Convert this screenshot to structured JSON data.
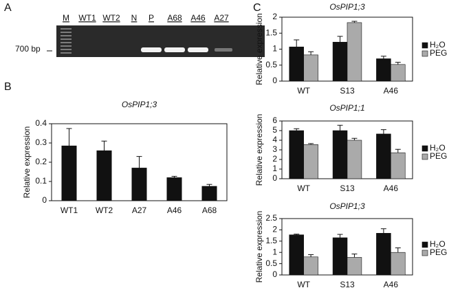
{
  "panels": [
    "A",
    "B",
    "C"
  ],
  "gel": {
    "lanes": [
      "M",
      "WT1",
      "WT2",
      "N",
      "P",
      "A68",
      "A46",
      "A27"
    ],
    "marker": "700 bp"
  },
  "chart_data": [
    {
      "type": "bar",
      "title": "OsPIP1;3",
      "y_label": "Relative expression",
      "categories": [
        "WT1",
        "WT2",
        "A27",
        "A46",
        "A68"
      ],
      "values": [
        0.285,
        0.26,
        0.17,
        0.12,
        0.075
      ],
      "errors": [
        0.09,
        0.05,
        0.06,
        0.007,
        0.01
      ],
      "color": "#111111",
      "ylim": [
        0,
        0.4
      ],
      "yticks": [
        0,
        0.1,
        0.2,
        0.3,
        0.4
      ]
    },
    {
      "type": "bar",
      "title": "OsPIP1;3",
      "y_label": "Relative expression",
      "categories": [
        "WT",
        "S13",
        "A46"
      ],
      "series": [
        {
          "name": "H₂O",
          "color": "#111111",
          "values": [
            1.07,
            1.22,
            0.7
          ],
          "errors": [
            0.22,
            0.18,
            0.08
          ]
        },
        {
          "name": "PEG",
          "color": "#aaaaaa",
          "values": [
            0.82,
            1.83,
            0.52
          ],
          "errors": [
            0.1,
            0.04,
            0.07
          ]
        }
      ],
      "ylim": [
        0,
        2
      ],
      "yticks": [
        0,
        0.5,
        1,
        1.5,
        2
      ]
    },
    {
      "type": "bar",
      "title": "OsPIP1;1",
      "y_label": "Relative expression",
      "categories": [
        "WT",
        "S13",
        "A46"
      ],
      "series": [
        {
          "name": "H₂O",
          "color": "#111111",
          "values": [
            5.0,
            5.0,
            4.65
          ],
          "errors": [
            0.2,
            0.55,
            0.45
          ]
        },
        {
          "name": "PEG",
          "color": "#aaaaaa",
          "values": [
            3.55,
            4.0,
            2.7
          ],
          "errors": [
            0.1,
            0.2,
            0.35
          ]
        }
      ],
      "ylim": [
        0,
        6
      ],
      "yticks": [
        0,
        1,
        2,
        3,
        4,
        5,
        6
      ]
    },
    {
      "type": "bar",
      "title": "OsPIP1;3",
      "y_label": "Relative expression",
      "categories": [
        "WT",
        "S13",
        "A46"
      ],
      "series": [
        {
          "name": "H₂O",
          "color": "#111111",
          "values": [
            1.78,
            1.65,
            1.85
          ],
          "errors": [
            0.03,
            0.15,
            0.2
          ]
        },
        {
          "name": "PEG",
          "color": "#aaaaaa",
          "values": [
            0.8,
            0.78,
            1.0
          ],
          "errors": [
            0.1,
            0.15,
            0.2
          ]
        }
      ],
      "ylim": [
        0,
        2.5
      ],
      "yticks": [
        0,
        0.5,
        1,
        1.5,
        2,
        2.5
      ]
    }
  ]
}
